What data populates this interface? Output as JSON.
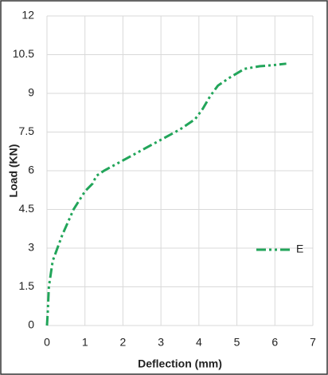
{
  "chart_data": {
    "type": "line",
    "x_label": "Deflection (mm)",
    "y_label": "Load (KN)",
    "xlim": [
      0,
      7
    ],
    "xticks": [
      0,
      1,
      2,
      3,
      4,
      5,
      6,
      7
    ],
    "ylim": [
      0,
      12
    ],
    "yticks": [
      0,
      1.5,
      3,
      4.5,
      6,
      7.5,
      9,
      10.5,
      12
    ],
    "grid": true,
    "legend": "right",
    "series": [
      {
        "name": "E",
        "color": "#22a55a",
        "x": [
          0,
          0.02,
          0.05,
          0.15,
          0.4,
          0.7,
          1.0,
          1.2,
          1.3,
          1.5,
          2,
          2.5,
          3,
          3.5,
          3.9,
          4.1,
          4.3,
          4.5,
          4.8,
          5.2,
          5.6,
          6,
          6.3
        ],
        "values": [
          0,
          0.5,
          1.5,
          2.5,
          3.5,
          4.5,
          5.2,
          5.5,
          5.8,
          6.0,
          6.4,
          6.8,
          7.2,
          7.6,
          8.0,
          8.4,
          8.9,
          9.3,
          9.6,
          9.95,
          10.05,
          10.1,
          10.15
        ]
      }
    ]
  }
}
